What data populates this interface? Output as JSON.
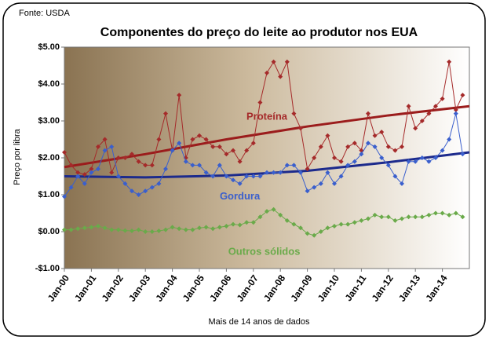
{
  "chart_data": {
    "type": "line",
    "source": "Fonte: USDA",
    "title": "Componentes do preço do leite ao produtor nos EUA",
    "y_label": "Preço por libra",
    "x_label": "Mais de 14 anos de dados",
    "x": [
      2000,
      2000.25,
      2000.5,
      2000.75,
      2001,
      2001.25,
      2001.5,
      2001.75,
      2002,
      2002.25,
      2002.5,
      2002.75,
      2003,
      2003.25,
      2003.5,
      2003.75,
      2004,
      2004.25,
      2004.5,
      2004.75,
      2005,
      2005.25,
      2005.5,
      2005.75,
      2006,
      2006.25,
      2006.5,
      2006.75,
      2007,
      2007.25,
      2007.5,
      2007.75,
      2008,
      2008.25,
      2008.5,
      2008.75,
      2009,
      2009.25,
      2009.5,
      2009.75,
      2010,
      2010.25,
      2010.5,
      2010.75,
      2011,
      2011.25,
      2011.5,
      2011.75,
      2012,
      2012.25,
      2012.5,
      2012.75,
      2013,
      2013.25,
      2013.5,
      2013.75,
      2014,
      2014.25,
      2014.5,
      2014.75
    ],
    "series": [
      {
        "name": "Proteína",
        "color": "#a52a2a",
        "values": [
          2.15,
          1.8,
          1.6,
          1.55,
          1.7,
          2.3,
          2.5,
          1.6,
          2.0,
          2.0,
          2.1,
          1.9,
          1.8,
          1.8,
          2.5,
          3.2,
          2.2,
          3.7,
          2.0,
          2.5,
          2.6,
          2.5,
          2.3,
          2.3,
          2.1,
          2.2,
          1.9,
          2.2,
          2.4,
          3.5,
          4.3,
          4.6,
          4.2,
          4.6,
          3.2,
          2.8,
          1.7,
          2.0,
          2.3,
          2.6,
          2.0,
          1.9,
          2.3,
          2.4,
          2.2,
          3.2,
          2.6,
          2.7,
          2.3,
          2.2,
          2.3,
          3.4,
          2.8,
          3.0,
          3.2,
          3.4,
          3.6,
          4.6,
          3.3,
          3.7
        ]
      },
      {
        "name": "Gordura",
        "color": "#3a5fcd",
        "values": [
          0.95,
          1.2,
          1.5,
          1.3,
          1.6,
          1.7,
          2.2,
          2.3,
          1.5,
          1.3,
          1.1,
          1.0,
          1.1,
          1.2,
          1.3,
          1.7,
          2.2,
          2.4,
          1.9,
          1.8,
          1.8,
          1.6,
          1.5,
          1.8,
          1.5,
          1.4,
          1.3,
          1.5,
          1.5,
          1.5,
          1.6,
          1.6,
          1.6,
          1.8,
          1.8,
          1.6,
          1.1,
          1.2,
          1.3,
          1.6,
          1.3,
          1.5,
          1.8,
          1.9,
          2.1,
          2.4,
          2.3,
          2.0,
          1.8,
          1.5,
          1.3,
          1.9,
          1.9,
          2.0,
          1.9,
          2.0,
          2.2,
          2.5,
          3.2,
          2.1
        ]
      },
      {
        "name": "Outros sólidos",
        "color": "#6aaa4a",
        "values": [
          0.05,
          0.05,
          0.08,
          0.1,
          0.12,
          0.15,
          0.1,
          0.05,
          0.05,
          0.03,
          0.02,
          0.05,
          0.0,
          0.0,
          0.02,
          0.05,
          0.12,
          0.08,
          0.05,
          0.05,
          0.1,
          0.12,
          0.08,
          0.12,
          0.15,
          0.2,
          0.18,
          0.25,
          0.25,
          0.4,
          0.55,
          0.6,
          0.45,
          0.3,
          0.2,
          0.1,
          -0.05,
          -0.1,
          0.0,
          0.1,
          0.15,
          0.2,
          0.2,
          0.25,
          0.3,
          0.35,
          0.45,
          0.4,
          0.4,
          0.3,
          0.35,
          0.4,
          0.4,
          0.4,
          0.45,
          0.5,
          0.5,
          0.45,
          0.5,
          0.4
        ]
      }
    ],
    "trends": [
      {
        "color": "#9b1c1c",
        "x": [
          2000,
          2003,
          2006,
          2009,
          2012,
          2015
        ],
        "values": [
          1.75,
          2.1,
          2.5,
          2.85,
          3.15,
          3.4
        ]
      },
      {
        "color": "#1c2a8c",
        "x": [
          2000,
          2003,
          2006,
          2009,
          2012,
          2015
        ],
        "values": [
          1.5,
          1.47,
          1.52,
          1.65,
          1.88,
          2.15
        ]
      }
    ],
    "xlim": [
      2000,
      2015
    ],
    "xticks": [
      {
        "value": 2000,
        "label": "Jan-00"
      },
      {
        "value": 2001,
        "label": "Jan-01"
      },
      {
        "value": 2002,
        "label": "Jan-02"
      },
      {
        "value": 2003,
        "label": "Jan-03"
      },
      {
        "value": 2004,
        "label": "Jan-04"
      },
      {
        "value": 2005,
        "label": "Jan-05"
      },
      {
        "value": 2006,
        "label": "Jan-06"
      },
      {
        "value": 2007,
        "label": "Jan-07"
      },
      {
        "value": 2008,
        "label": "Jan-08"
      },
      {
        "value": 2009,
        "label": "Jan-09"
      },
      {
        "value": 2010,
        "label": "Jan-10"
      },
      {
        "value": 2011,
        "label": "Jan-11"
      },
      {
        "value": 2012,
        "label": "Jan-12"
      },
      {
        "value": 2013,
        "label": "Jan-13"
      },
      {
        "value": 2014,
        "label": "Jan-14"
      }
    ],
    "ylim": [
      -1,
      5
    ],
    "yticks": [
      {
        "value": -1,
        "label": "-$1.00"
      },
      {
        "value": 0,
        "label": "$0.00"
      },
      {
        "value": 1,
        "label": "$1.00"
      },
      {
        "value": 2,
        "label": "$2.00"
      },
      {
        "value": 3,
        "label": "$3.00"
      },
      {
        "value": 4,
        "label": "$4.00"
      },
      {
        "value": 5,
        "label": "$5.00"
      }
    ]
  }
}
